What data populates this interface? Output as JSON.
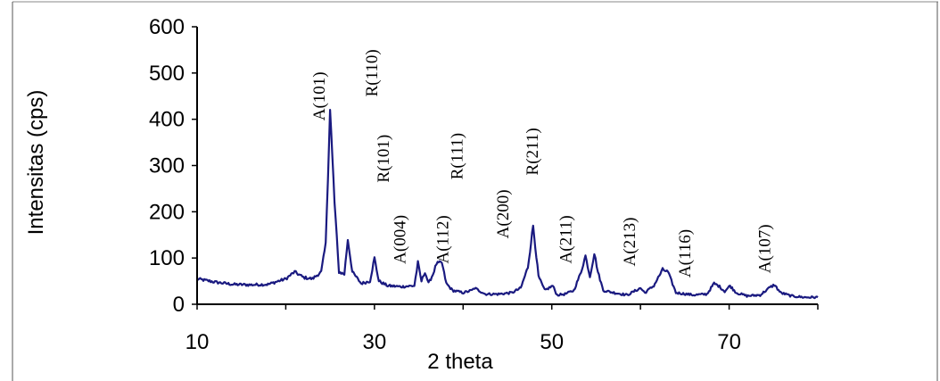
{
  "chart_data": {
    "type": "line",
    "title": "",
    "xlabel": "2 theta",
    "ylabel": "Intensitas (cps)",
    "xlim": [
      10,
      80
    ],
    "ylim": [
      0,
      600
    ],
    "xticks": [
      10,
      30,
      50,
      70
    ],
    "yticks": [
      0,
      100,
      200,
      300,
      400,
      500,
      600
    ],
    "grid": false,
    "legend": "none",
    "series_color": "#1a1a80",
    "series": [
      {
        "x": [
          10,
          12,
          14,
          16,
          18,
          20,
          21,
          22,
          23,
          24,
          24.5,
          25,
          25.5,
          26,
          26.6,
          27,
          27.5,
          28.5,
          29.5,
          30,
          30.5,
          31.5,
          33,
          34.5,
          34.9,
          35.3,
          35.7,
          36.1,
          36.6,
          37,
          37.6,
          38.1,
          38.8,
          40,
          41,
          41.3,
          42.5,
          44,
          45.5,
          46.5,
          47.3,
          47.9,
          48.5,
          49.2,
          50.1,
          50.6,
          51.5,
          52.5,
          53.3,
          53.8,
          54.3,
          54.8,
          55.2,
          55.8,
          57,
          58.5,
          59.5,
          60,
          60.5,
          61.5,
          62.5,
          63.1,
          64,
          66,
          67.5,
          68.3,
          68.8,
          69.5,
          70.1,
          70.8,
          72,
          73.5,
          74.5,
          75.1,
          75.8,
          77,
          78.5,
          80
        ],
        "y": [
          55,
          48,
          43,
          42,
          43,
          55,
          70,
          58,
          55,
          70,
          130,
          420,
          220,
          70,
          65,
          140,
          70,
          45,
          50,
          100,
          50,
          40,
          38,
          40,
          90,
          50,
          70,
          45,
          65,
          88,
          90,
          45,
          30,
          25,
          30,
          35,
          22,
          22,
          25,
          35,
          80,
          170,
          60,
          30,
          40,
          20,
          22,
          30,
          70,
          105,
          60,
          110,
          70,
          30,
          25,
          20,
          30,
          35,
          25,
          40,
          75,
          70,
          25,
          20,
          22,
          45,
          40,
          28,
          40,
          25,
          18,
          20,
          35,
          42,
          25,
          18,
          15,
          15
        ]
      }
    ],
    "annotations": [
      {
        "text": "A(101)",
        "x": 24.4,
        "y": 450
      },
      {
        "text": "R(110)",
        "x": 30.3,
        "y": 500
      },
      {
        "text": "R(101)",
        "x": 31.6,
        "y": 315
      },
      {
        "text": "A(004)",
        "x": 33.5,
        "y": 140
      },
      {
        "text": "A(112)",
        "x": 38.3,
        "y": 140
      },
      {
        "text": "R(111)",
        "x": 39.9,
        "y": 320
      },
      {
        "text": "A(200)",
        "x": 45.1,
        "y": 195
      },
      {
        "text": "R(211)",
        "x": 48.4,
        "y": 330
      },
      {
        "text": "A(211)",
        "x": 52.2,
        "y": 140
      },
      {
        "text": "A(213)",
        "x": 59.4,
        "y": 135
      },
      {
        "text": "A(116)",
        "x": 65.6,
        "y": 110
      },
      {
        "text": "A(107)",
        "x": 74.6,
        "y": 120
      }
    ]
  }
}
